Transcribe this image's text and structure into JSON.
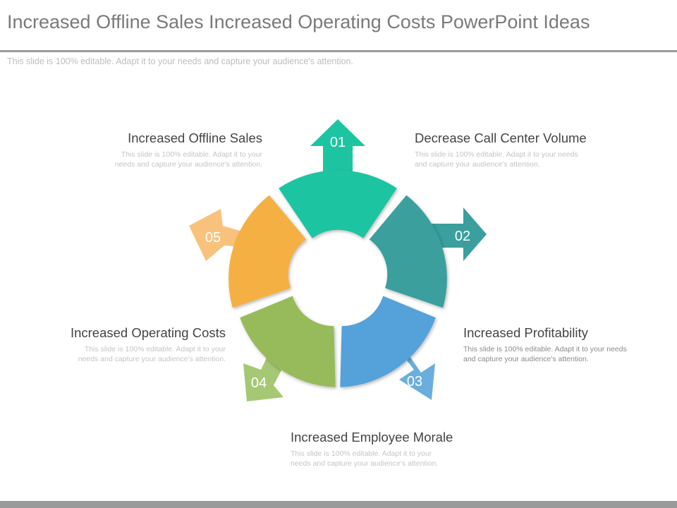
{
  "header": {
    "title": "Increased Offline Sales Increased Operating Costs PowerPoint Ideas",
    "subtitle": "This slide is 100% editable. Adapt it to your needs and capture your audience's attention."
  },
  "colors": {
    "teal": "#1dc4a1",
    "dark_teal": "#3a9f9d",
    "blue": "#54a1da",
    "green": "#97bb5a",
    "orange": "#f4b042",
    "arrow_orange": "#f8c27d",
    "arrow_green": "#a6c874",
    "arrow_blue": "#6aaedd"
  },
  "segments": [
    {
      "number": "01",
      "color": "teal"
    },
    {
      "number": "02",
      "color": "dark_teal"
    },
    {
      "number": "03",
      "color": "blue"
    },
    {
      "number": "04",
      "color": "green"
    },
    {
      "number": "05",
      "color": "orange"
    }
  ],
  "items": [
    {
      "title": "Increased Offline Sales",
      "text": "This slide is 100% editable.  Adapt it to your needs and capture your audience's attention."
    },
    {
      "title": "Decrease Call Center Volume",
      "text": "This slide is 100% editable.  Adapt it to your needs and capture your audience's attention."
    },
    {
      "title": "Increased Profitability",
      "text": "This slide is 100% editable.  Adapt it to your needs and capture your audience's attention."
    },
    {
      "title": "Increased Operating Costs",
      "text": "This slide is 100% editable.  Adapt it to your needs and capture your audience's attention."
    },
    {
      "title": "Increased Employee Morale",
      "text": "This slide is 100% editable.  Adapt it to your needs and capture your audience's attention."
    }
  ]
}
